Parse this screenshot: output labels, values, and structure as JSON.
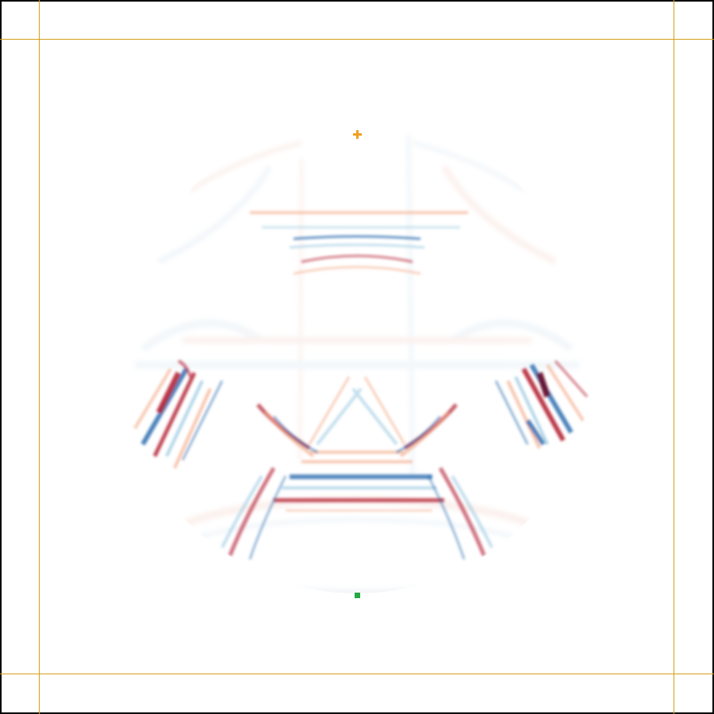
{
  "figure": {
    "description_free": true,
    "colors": {
      "background": "#ffffff",
      "border": "#000000",
      "pml_lines": "#d4a017",
      "positive": "#b2182b",
      "positive_light": "#f4a582",
      "negative": "#2166ac",
      "negative_light": "#92c5de",
      "source_marker": "#f0a020",
      "receiver_marker": "#22aa44"
    },
    "markers": {
      "source": "plus",
      "receiver": "square"
    }
  }
}
